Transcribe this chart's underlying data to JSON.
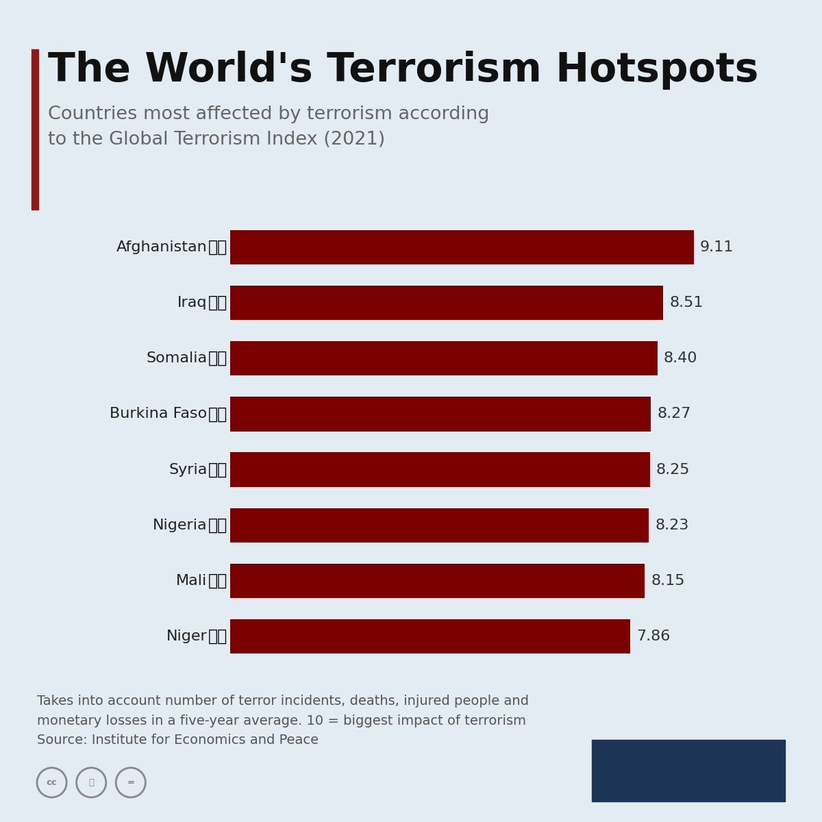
{
  "title": "The World's Terrorism Hotspots",
  "subtitle_line1": "Countries most affected by terrorism according",
  "subtitle_line2": "to the Global Terrorism Index (2021)",
  "countries": [
    "Afghanistan",
    "Iraq",
    "Somalia",
    "Burkina Faso",
    "Syria",
    "Nigeria",
    "Mali",
    "Niger"
  ],
  "values": [
    9.11,
    8.51,
    8.4,
    8.27,
    8.25,
    8.23,
    8.15,
    7.86
  ],
  "bar_color": "#7B0000",
  "background_color": "#E3ECF3",
  "title_color": "#111111",
  "subtitle_color": "#666666",
  "value_color": "#333333",
  "accent_bar_color": "#8B1A1A",
  "footnote_line1": "Takes into account number of terror incidents, deaths, injured people and",
  "footnote_line2": "monetary losses in a five-year average. 10 = biggest impact of terrorism",
  "footnote_line3": "Source: Institute for Economics and Peace",
  "bar_height": 0.62,
  "xlim_max": 10.5,
  "statista_color": "#1C3557",
  "footnote_color": "#555555",
  "icon_color": "#888888"
}
